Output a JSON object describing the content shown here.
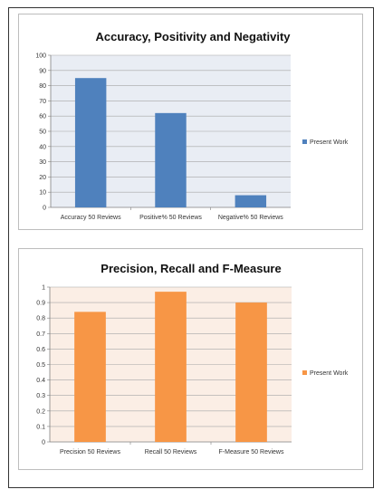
{
  "chart_data": [
    {
      "type": "bar",
      "title": "Accuracy, Positivity and Negativity",
      "categories": [
        "Accuracy 50 Reviews",
        "Positive% 50 Reviews",
        "Negative% 50 Reviews"
      ],
      "series": [
        {
          "name": "Present Work",
          "values": [
            85,
            62,
            8
          ]
        }
      ],
      "ylim": [
        0,
        100
      ],
      "yticks": [
        0,
        10,
        20,
        30,
        40,
        50,
        60,
        70,
        80,
        90,
        100
      ],
      "grid": true,
      "legend": "right",
      "bar_color": "#4f81bd",
      "plot_bg": "#e9edf4"
    },
    {
      "type": "bar",
      "title": "Precision, Recall and F-Measure",
      "categories": [
        "Precision 50 Reviews",
        "Recall 50 Reviews",
        "F-Measure 50 Reviews"
      ],
      "series": [
        {
          "name": "Present Work",
          "values": [
            0.84,
            0.97,
            0.9
          ]
        }
      ],
      "ylim": [
        0,
        1
      ],
      "yticks": [
        0,
        0.1,
        0.2,
        0.3,
        0.4,
        0.5,
        0.6,
        0.7,
        0.8,
        0.9,
        1
      ],
      "grid": true,
      "legend": "right",
      "bar_color": "#f79646",
      "plot_bg": "#fbeee5"
    }
  ]
}
